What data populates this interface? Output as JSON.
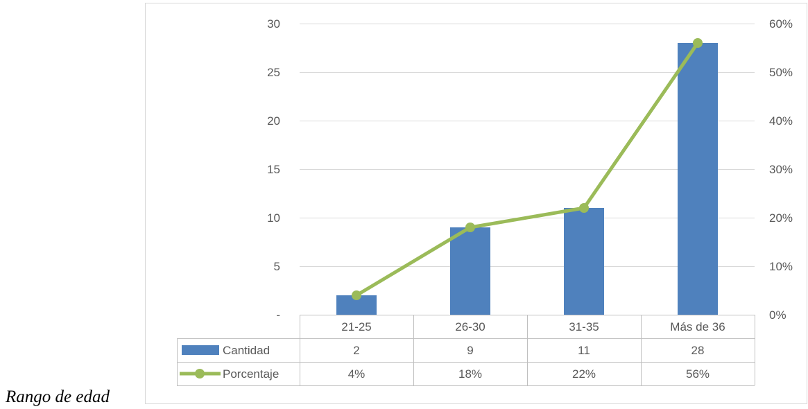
{
  "caption": "Rango de edad",
  "colors": {
    "bar": "#4f81bd",
    "line": "#9bbb59",
    "grid": "#d9d9d9",
    "border": "#bfbfbf",
    "text": "#595959"
  },
  "chart_data": {
    "type": "bar",
    "title": "",
    "xlabel": "Rango de edad",
    "categories": [
      "21-25",
      "26-30",
      "31-35",
      "Más de 36"
    ],
    "y_left": {
      "range": [
        0,
        30
      ],
      "ticks": [
        0,
        5,
        10,
        15,
        20,
        25,
        30
      ],
      "tick_labels": [
        "-",
        "5",
        "10",
        "15",
        "20",
        "25",
        "30"
      ]
    },
    "y_right": {
      "range": [
        0,
        0.6
      ],
      "ticks": [
        0,
        0.1,
        0.2,
        0.3,
        0.4,
        0.5,
        0.6
      ],
      "tick_labels": [
        "0%",
        "10%",
        "20%",
        "30%",
        "40%",
        "50%",
        "60%"
      ]
    },
    "grid": true,
    "legend": "data-table",
    "series": [
      {
        "name": "Cantidad",
        "type": "bar",
        "axis": "left",
        "values": [
          2,
          9,
          11,
          28
        ],
        "labels": [
          "2",
          "9",
          "11",
          "28"
        ]
      },
      {
        "name": "Porcentaje",
        "type": "line",
        "axis": "right",
        "values": [
          0.04,
          0.18,
          0.22,
          0.56
        ],
        "labels": [
          "4%",
          "18%",
          "22%",
          "56%"
        ]
      }
    ]
  }
}
